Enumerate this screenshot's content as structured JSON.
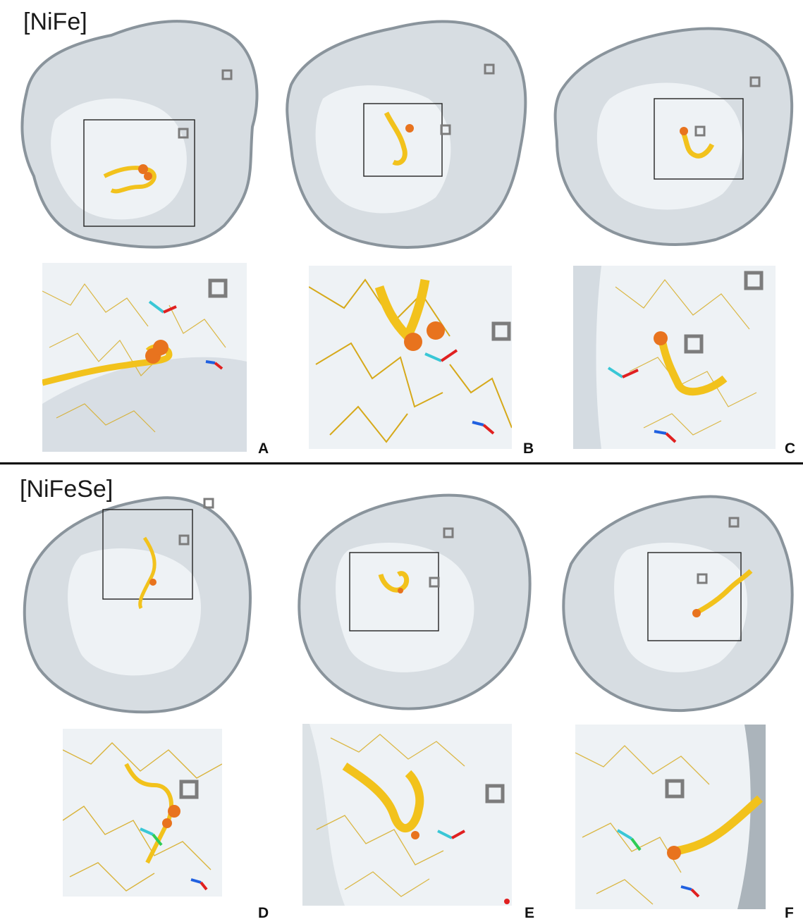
{
  "sections": [
    {
      "title": "[NiFe]"
    },
    {
      "title": "[NiFeSe]"
    }
  ],
  "panels": [
    {
      "letter": "A"
    },
    {
      "letter": "B"
    },
    {
      "letter": "C"
    },
    {
      "letter": "D"
    },
    {
      "letter": "E"
    },
    {
      "letter": "F"
    }
  ],
  "colors": {
    "surface": "#d7dde2",
    "surface_shadow": "#8a949c",
    "tunnel": "#f2c21c",
    "tunnel_dark": "#c49a10",
    "sphere": "#e8731e",
    "cluster": "#7c7c7c",
    "fluorine": "#39c7d6",
    "oxygen": "#e02020",
    "nitrogen": "#2060e0"
  }
}
